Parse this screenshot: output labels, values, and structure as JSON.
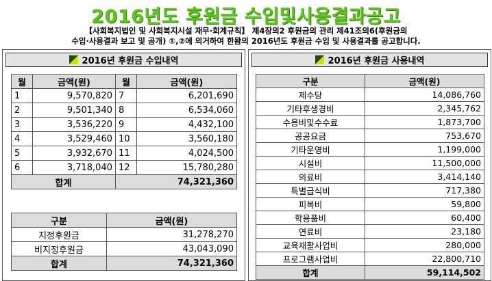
{
  "title": "2016년도 후원금 수입및사용결과공고",
  "description": [
    "【사회복지법인 및 사회복지시설 재무·회계규칙】 제4장의2 후원금의 관리 제41조의6(후원금의",
    "수입·사용결과 보고 및 공개) ①,②에 의거하여 한뫔의 2016년도 후원금 수입 및 사용결과를 공고합니다."
  ],
  "income": {
    "heading": "2016년 후원금 수입내역",
    "headers": [
      "월",
      "금액(원)",
      "월",
      "금액(원)"
    ],
    "rows": [
      {
        "m1": "1",
        "a1": "9,570,820",
        "m2": "7",
        "a2": "6,201,690"
      },
      {
        "m1": "2",
        "a1": "9,501,340",
        "m2": "8",
        "a2": "6,534,060"
      },
      {
        "m1": "3",
        "a1": "3,536,220",
        "m2": "9",
        "a2": "4,432,100"
      },
      {
        "m1": "4",
        "a1": "3,529,460",
        "m2": "10",
        "a2": "3,560,180"
      },
      {
        "m1": "5",
        "a1": "3,932,670",
        "m2": "11",
        "a2": "4,024,500"
      },
      {
        "m1": "6",
        "a1": "3,718,040",
        "m2": "12",
        "a2": "15,780,280"
      }
    ],
    "total_label": "합계",
    "total_value": "74,321,360"
  },
  "income_type": {
    "headers": [
      "구분",
      "금액(원)"
    ],
    "rows": [
      {
        "label": "지정후원금",
        "amount": "31,278,270"
      },
      {
        "label": "비지정후원금",
        "amount": "43,043,090"
      }
    ],
    "total_label": "합계",
    "total_value": "74,321,360"
  },
  "usage": {
    "heading": "2016년 후원금 사용내역",
    "headers": [
      "구분",
      "금액(원)"
    ],
    "rows": [
      {
        "label": "제수당",
        "amount": "14,086,760"
      },
      {
        "label": "기타후생경비",
        "amount": "2,345,762"
      },
      {
        "label": "수용비및수수료",
        "amount": "1,873,700"
      },
      {
        "label": "공공요금",
        "amount": "753,670"
      },
      {
        "label": "기타운영비",
        "amount": "1,199,000"
      },
      {
        "label": "시설비",
        "amount": "11,500,000"
      },
      {
        "label": "의료비",
        "amount": "3,414,140"
      },
      {
        "label": "특별급식비",
        "amount": "717,380"
      },
      {
        "label": "피복비",
        "amount": "59,800"
      },
      {
        "label": "학용품비",
        "amount": "60,400"
      },
      {
        "label": "연료비",
        "amount": "23,180"
      },
      {
        "label": "교육재활사업비",
        "amount": "280,000"
      },
      {
        "label": "프로그램사업비",
        "amount": "22,800,710"
      }
    ],
    "total_label": "합계",
    "total_value": "59,114,502"
  },
  "colors": {
    "title": "#5ec51c",
    "header_bg": "#e4e4e4",
    "icon_dark": "#1f4a0a",
    "icon_light": "#c8e600"
  }
}
